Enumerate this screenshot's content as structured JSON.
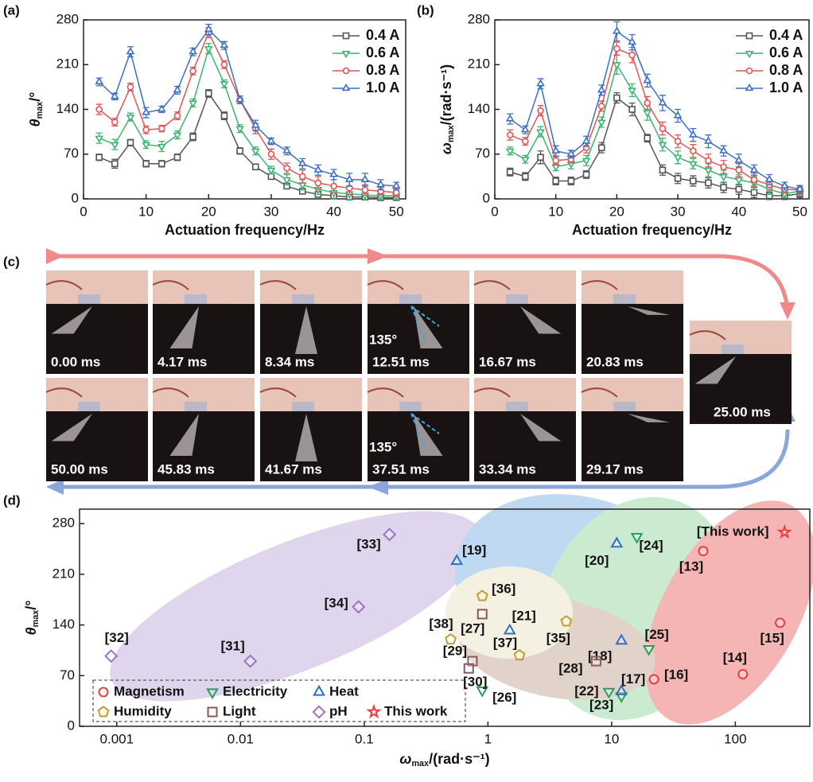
{
  "chart_data": [
    {
      "type": "line",
      "panel": "(a)",
      "xlabel": "Actuation frequency/Hz",
      "ylabel": [
        "θ",
        "max",
        "/°"
      ],
      "x": [
        2.5,
        5,
        7.5,
        10,
        12.5,
        15,
        17.5,
        20,
        22.5,
        25,
        27.5,
        30,
        32.5,
        35,
        37.5,
        40,
        42.5,
        45,
        47.5,
        50
      ],
      "xlim": [
        0,
        51.5
      ],
      "ylim": [
        0,
        280
      ],
      "xticks": [
        0,
        10,
        20,
        30,
        40,
        50
      ],
      "yticks": [
        0,
        70,
        140,
        210,
        280
      ],
      "legend": "upper right",
      "series": [
        {
          "name": "0.4 A",
          "color": "#555555",
          "marker": "square",
          "values": [
            65,
            55,
            88,
            55,
            55,
            65,
            97,
            165,
            130,
            75,
            50,
            35,
            20,
            12,
            7,
            5,
            3,
            3,
            2,
            2
          ],
          "errors": [
            5,
            7,
            5,
            5,
            5,
            5,
            6,
            6,
            6,
            5,
            4,
            4,
            4,
            4,
            4,
            4,
            4,
            4,
            4,
            4
          ]
        },
        {
          "name": "0.6 A",
          "color": "#3cb371",
          "marker": "triangle-down",
          "values": [
            95,
            85,
            128,
            85,
            82,
            100,
            150,
            235,
            180,
            110,
            75,
            45,
            30,
            22,
            15,
            10,
            8,
            6,
            5,
            5
          ],
          "errors": [
            8,
            8,
            6,
            6,
            8,
            6,
            6,
            8,
            6,
            6,
            6,
            6,
            8,
            8,
            8,
            10,
            10,
            8,
            6,
            6
          ]
        },
        {
          "name": "0.8 A",
          "color": "#e05555",
          "marker": "circle",
          "values": [
            140,
            120,
            175,
            108,
            110,
            130,
            200,
            260,
            210,
            155,
            110,
            70,
            48,
            35,
            25,
            20,
            17,
            14,
            12,
            10
          ],
          "errors": [
            8,
            6,
            6,
            6,
            5,
            6,
            6,
            8,
            6,
            6,
            8,
            8,
            8,
            10,
            10,
            10,
            10,
            8,
            6,
            6
          ]
        },
        {
          "name": "1.0 A",
          "color": "#3b6fc4",
          "marker": "triangle-up",
          "values": [
            183,
            160,
            230,
            135,
            140,
            170,
            230,
            265,
            240,
            155,
            115,
            90,
            75,
            55,
            45,
            38,
            30,
            30,
            22,
            20
          ],
          "errors": [
            6,
            5,
            8,
            8,
            5,
            6,
            6,
            8,
            6,
            6,
            8,
            5,
            6,
            8,
            8,
            8,
            10,
            10,
            8,
            6
          ]
        }
      ]
    },
    {
      "type": "line",
      "panel": "(b)",
      "xlabel": "Actuation frequency/Hz",
      "ylabel": [
        "ω",
        "max",
        "/(rad·s⁻¹)"
      ],
      "x": [
        2.5,
        5,
        7.5,
        10,
        12.5,
        15,
        17.5,
        20,
        22.5,
        25,
        27.5,
        30,
        32.5,
        35,
        37.5,
        40,
        42.5,
        45,
        47.5,
        50
      ],
      "xlim": [
        0,
        51.5
      ],
      "ylim": [
        0,
        280
      ],
      "xticks": [
        0,
        10,
        20,
        30,
        40,
        50
      ],
      "yticks": [
        0,
        70,
        140,
        210,
        280
      ],
      "legend": "upper right",
      "series": [
        {
          "name": "0.4 A",
          "color": "#555555",
          "marker": "square",
          "values": [
            42,
            35,
            65,
            28,
            28,
            38,
            80,
            158,
            140,
            95,
            45,
            32,
            28,
            25,
            18,
            15,
            10,
            5,
            5,
            8
          ],
          "errors": [
            6,
            6,
            10,
            6,
            6,
            6,
            8,
            8,
            10,
            6,
            8,
            8,
            8,
            8,
            8,
            8,
            8,
            6,
            6,
            6
          ]
        },
        {
          "name": "0.6 A",
          "color": "#3cb371",
          "marker": "triangle-down",
          "values": [
            75,
            62,
            105,
            50,
            55,
            60,
            120,
            210,
            170,
            135,
            85,
            65,
            55,
            45,
            35,
            30,
            25,
            15,
            8,
            12
          ],
          "errors": [
            6,
            6,
            8,
            6,
            8,
            8,
            8,
            15,
            10,
            12,
            10,
            10,
            8,
            10,
            10,
            8,
            10,
            8,
            6,
            6
          ]
        },
        {
          "name": "0.8 A",
          "color": "#e05555",
          "marker": "circle",
          "values": [
            100,
            90,
            138,
            60,
            62,
            80,
            145,
            235,
            225,
            150,
            110,
            90,
            75,
            60,
            50,
            45,
            30,
            22,
            15,
            14
          ],
          "errors": [
            8,
            6,
            8,
            6,
            6,
            8,
            8,
            10,
            12,
            10,
            10,
            10,
            10,
            10,
            10,
            10,
            10,
            8,
            6,
            6
          ]
        },
        {
          "name": "1.0 A",
          "color": "#3b6fc4",
          "marker": "triangle-up",
          "values": [
            125,
            108,
            180,
            75,
            70,
            90,
            170,
            262,
            245,
            185,
            150,
            130,
            100,
            90,
            75,
            60,
            45,
            30,
            20,
            15
          ],
          "errors": [
            8,
            6,
            8,
            8,
            6,
            8,
            8,
            15,
            12,
            10,
            12,
            10,
            10,
            10,
            8,
            10,
            8,
            8,
            6,
            6
          ]
        }
      ]
    },
    {
      "type": "scatter",
      "panel": "(d)",
      "xlabel": [
        "ω",
        "max",
        "/(rad·s⁻¹)"
      ],
      "ylabel": [
        "θ",
        "max",
        "/°"
      ],
      "xscale": "log",
      "xlim": [
        0.0005,
        400
      ],
      "ylim": [
        0,
        300
      ],
      "xticks": [
        0.001,
        0.01,
        0.1,
        1,
        10,
        100
      ],
      "yticks": [
        0,
        70,
        140,
        210,
        280
      ],
      "legend": "lower left",
      "series": [
        {
          "name": "Magnetism",
          "color": "#e8403f",
          "marker": "circle",
          "x": [
            55,
            230,
            115,
            22
          ],
          "values": [
            242,
            143,
            72,
            65
          ],
          "labels": [
            "[13]",
            "[15]",
            "[14]",
            "[16]"
          ]
        },
        {
          "name": "Electricity",
          "color": "#2e9e5b",
          "marker": "triangle-down",
          "x": [
            16,
            20,
            0.9,
            9.5,
            12
          ],
          "values": [
            262,
            107,
            50,
            48,
            42
          ],
          "labels": [
            "[24]",
            "[25]",
            "[26]",
            "[22]",
            "[23]"
          ]
        },
        {
          "name": "Heat",
          "color": "#2f6fc0",
          "marker": "triangle-up",
          "x": [
            0.56,
            11,
            1.5,
            12,
            12
          ],
          "values": [
            228,
            252,
            132,
            118,
            48
          ],
          "labels": [
            "[19]",
            "[20]",
            "[21]",
            "[18]",
            "[17]"
          ]
        },
        {
          "name": "Humidity",
          "color": "#c89a2a",
          "marker": "pentagon",
          "x": [
            0.9,
            0.5,
            1.8,
            4.3
          ],
          "values": [
            180,
            120,
            98,
            145
          ],
          "labels": [
            "[36]",
            "[38]",
            "[37]",
            "[35]"
          ]
        },
        {
          "name": "Light",
          "color": "#8a5a5a",
          "marker": "square",
          "x": [
            0.9,
            0.75,
            0.7,
            7.5
          ],
          "values": [
            155,
            90,
            80,
            90
          ],
          "labels": [
            "[27]",
            "[29]",
            "[30]",
            "[28]"
          ]
        },
        {
          "name": "pH",
          "color": "#9a72c8",
          "marker": "diamond",
          "x": [
            0.0009,
            0.012,
            0.09,
            0.16
          ],
          "values": [
            97,
            90,
            165,
            265
          ],
          "labels": [
            "[32]",
            "[31]",
            "[34]",
            "[33]"
          ]
        },
        {
          "name": "This work",
          "color": "#e8403f",
          "marker": "star",
          "x": [
            250
          ],
          "values": [
            268
          ],
          "labels": [
            "[This work]"
          ]
        }
      ]
    }
  ],
  "panel_c": {
    "label": "(c)",
    "frames": [
      "0.00 ms",
      "4.17 ms",
      "8.34 ms",
      "12.51 ms",
      "16.67 ms",
      "20.83 ms",
      "50.00 ms",
      "45.83 ms",
      "41.67 ms",
      "37.51 ms",
      "33.34 ms",
      "29.17 ms",
      "25.00 ms"
    ],
    "angle_labels": [
      "135°",
      "135°"
    ]
  }
}
